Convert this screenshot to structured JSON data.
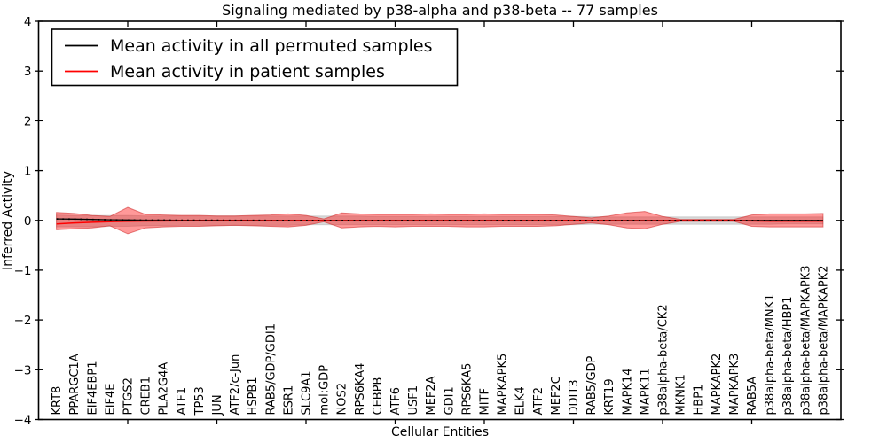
{
  "figure": {
    "title": "Signaling mediated by p38-alpha and p38-beta -- 77 samples",
    "xlabel": "Cellular Entities",
    "ylabel": "Inferred Activity"
  },
  "legend": {
    "entries": [
      {
        "label": "Mean activity in all permuted samples",
        "color": "#000000"
      },
      {
        "label": "Mean activity in patient samples",
        "color": "#ff0000"
      }
    ],
    "position": "upper left"
  },
  "colors": {
    "permuted_line": "#000000",
    "patient_line": "#ff0000",
    "permuted_band_fill": "rgba(0,0,0,0.15)",
    "permuted_band_edge": "rgba(0,0,0,0.12)",
    "patient_band_fill": "rgba(255,0,0,0.40)",
    "patient_band_edge": "rgba(205,35,35,0.55)"
  },
  "chart_data": {
    "type": "line",
    "title": "Signaling mediated by p38-alpha and p38-beta -- 77 samples",
    "xlabel": "Cellular Entities",
    "ylabel": "Inferred Activity",
    "xlim": [
      0,
      45
    ],
    "ylim": [
      -4,
      4
    ],
    "grid": false,
    "legend_position": "upper left",
    "x_major_tick_values": [
      5,
      10,
      15,
      20,
      25,
      30,
      35,
      40
    ],
    "y_ticks": [
      {
        "value": 4,
        "label": "4"
      },
      {
        "value": 3,
        "label": "3"
      },
      {
        "value": 2,
        "label": "2"
      },
      {
        "value": 1,
        "label": "1"
      },
      {
        "value": 0,
        "label": "0"
      },
      {
        "value": -1,
        "label": "−1"
      },
      {
        "value": -2,
        "label": "−2"
      },
      {
        "value": -3,
        "label": "−3"
      },
      {
        "value": -4,
        "label": "−4"
      }
    ],
    "categories": [
      "KRT8",
      "PPARGC1A",
      "EIF4EBP1",
      "EIF4E",
      "PTGS2",
      "CREB1",
      "PLA2G4A",
      "ATF1",
      "TP53",
      "JUN",
      "ATF2/c-Jun",
      "HSPB1",
      "RAB5/GDP/GDI1",
      "ESR1",
      "SLC9A1",
      "mol:GDP",
      "NOS2",
      "RPS6KA4",
      "CEBPB",
      "ATF6",
      "USF1",
      "MEF2A",
      "GDI1",
      "RPS6KA5",
      "MITF",
      "MAPKAPK5",
      "ELK4",
      "ATF2",
      "MEF2C",
      "DDIT3",
      "RAB5/GDP",
      "KRT19",
      "MAPK14",
      "MAPK11",
      "p38alpha-beta/CK2",
      "MKNK1",
      "HBP1",
      "MAPKAPK2",
      "MAPKAPK3",
      "RAB5A",
      "p38alpha-beta/MNK1",
      "p38alpha-beta/HBP1",
      "p38alpha-beta/MAPKAPK3",
      "p38alpha-beta/MAPKAPK2"
    ],
    "series": [
      {
        "name": "Mean activity in all permuted samples",
        "values": [
          0.03,
          0.025,
          0.018,
          0.012,
          0.008,
          0.005,
          0.004,
          0.003,
          0.002,
          0.002,
          0.001,
          0.001,
          0,
          0,
          0,
          0,
          0,
          0,
          0,
          0,
          0,
          0,
          0,
          0,
          0,
          0,
          0,
          0,
          0,
          0,
          0,
          0,
          0,
          0,
          0,
          0,
          0,
          0,
          0,
          0,
          0,
          0,
          0,
          0
        ]
      },
      {
        "name": "Mean activity in patient samples",
        "values": [
          -0.07,
          -0.05,
          -0.038,
          -0.025,
          -0.018,
          -0.014,
          -0.012,
          -0.01,
          -0.009,
          -0.008,
          -0.007,
          -0.006,
          -0.006,
          -0.006,
          -0.005,
          -0.005,
          -0.006,
          -0.006,
          -0.006,
          -0.006,
          -0.006,
          -0.006,
          -0.006,
          -0.006,
          -0.006,
          -0.006,
          -0.006,
          -0.006,
          -0.006,
          -0.005,
          -0.005,
          -0.006,
          -0.008,
          -0.008,
          -0.006,
          -0.004,
          -0.004,
          -0.004,
          -0.004,
          -0.012,
          -0.015,
          -0.015,
          -0.015,
          -0.015
        ]
      }
    ],
    "bands": [
      {
        "name": "permuted-activity-range",
        "upper": [
          0.11,
          0.1,
          0.1,
          0.1,
          0.1,
          0.09,
          0.09,
          0.09,
          0.09,
          0.09,
          0.09,
          0.09,
          0.09,
          0.09,
          0.09,
          0.09,
          0.09,
          0.09,
          0.08,
          0.08,
          0.08,
          0.08,
          0.08,
          0.08,
          0.08,
          0.08,
          0.08,
          0.08,
          0.08,
          0.08,
          0.08,
          0.07,
          0.07,
          0.07,
          0.07,
          0.07,
          0.07,
          0.07,
          0.07,
          0.07,
          0.07,
          0.07,
          0.07,
          0.07
        ],
        "lower": [
          -0.13,
          -0.13,
          -0.13,
          -0.12,
          -0.12,
          -0.11,
          -0.11,
          -0.1,
          -0.1,
          -0.1,
          -0.1,
          -0.1,
          -0.1,
          -0.1,
          -0.09,
          -0.09,
          -0.09,
          -0.09,
          -0.09,
          -0.09,
          -0.09,
          -0.09,
          -0.09,
          -0.09,
          -0.09,
          -0.09,
          -0.09,
          -0.09,
          -0.09,
          -0.09,
          -0.08,
          -0.08,
          -0.08,
          -0.08,
          -0.08,
          -0.08,
          -0.08,
          -0.08,
          -0.08,
          -0.08,
          -0.08,
          -0.07,
          -0.07,
          -0.07
        ]
      },
      {
        "name": "patient-activity-range",
        "upper": [
          0.16,
          0.14,
          0.1,
          0.08,
          0.26,
          0.12,
          0.11,
          0.1,
          0.1,
          0.09,
          0.09,
          0.1,
          0.11,
          0.13,
          0.1,
          0.03,
          0.15,
          0.13,
          0.12,
          0.12,
          0.12,
          0.13,
          0.12,
          0.12,
          0.13,
          0.12,
          0.12,
          0.12,
          0.11,
          0.08,
          0.05,
          0.09,
          0.15,
          0.18,
          0.08,
          0.02,
          0.02,
          0.02,
          0.02,
          0.11,
          0.13,
          0.13,
          0.13,
          0.14
        ],
        "lower": [
          -0.19,
          -0.17,
          -0.15,
          -0.11,
          -0.27,
          -0.15,
          -0.13,
          -0.12,
          -0.12,
          -0.11,
          -0.1,
          -0.11,
          -0.12,
          -0.13,
          -0.1,
          -0.03,
          -0.15,
          -0.13,
          -0.12,
          -0.13,
          -0.12,
          -0.12,
          -0.12,
          -0.13,
          -0.13,
          -0.12,
          -0.12,
          -0.12,
          -0.11,
          -0.08,
          -0.05,
          -0.09,
          -0.15,
          -0.17,
          -0.08,
          -0.02,
          -0.02,
          -0.02,
          -0.02,
          -0.12,
          -0.13,
          -0.13,
          -0.13,
          -0.13
        ]
      }
    ]
  }
}
